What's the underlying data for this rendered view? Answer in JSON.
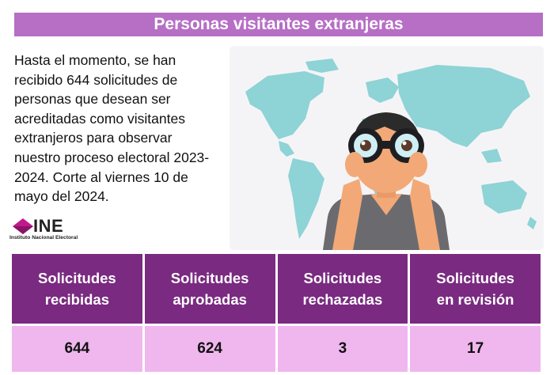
{
  "header": {
    "title": "Personas visitantes extranjeras"
  },
  "intro": {
    "text": "Hasta el momento, se han recibido 644 solicitudes de personas que desean ser acreditadas como visitantes extranjeros para observar nuestro proceso electoral 2023-2024. Corte al viernes 10 de mayo del 2024."
  },
  "logo": {
    "name": "INE",
    "subtitle": "Instituto Nacional Electoral"
  },
  "illustration": {
    "icon": "person-with-binoculars-over-world-map-icon"
  },
  "table": {
    "headers": [
      [
        "Solicitudes",
        "recibidas"
      ],
      [
        "Solicitudes",
        "aprobadas"
      ],
      [
        "Solicitudes",
        "rechazadas"
      ],
      [
        "Solicitudes",
        "en revisión"
      ]
    ],
    "values": [
      "644",
      "624",
      "3",
      "17"
    ]
  },
  "colors": {
    "title_bar": "#b66fc5",
    "header_row": "#7a2a80",
    "value_row": "#f0b7ee",
    "map": "#8ed3d6",
    "logo_accent": "#c2188c"
  }
}
